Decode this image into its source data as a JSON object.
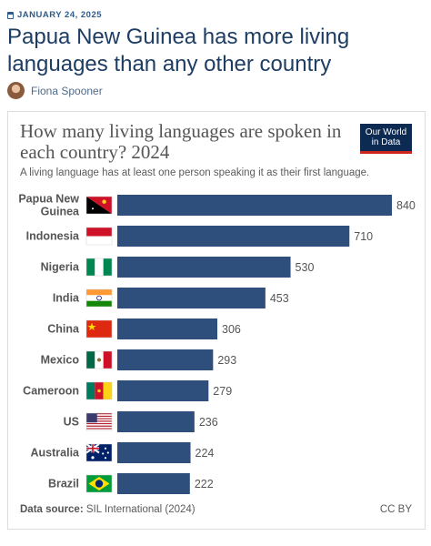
{
  "article": {
    "date": "JANUARY 24, 2025",
    "title": "Papua New Guinea has more living languages than any other country",
    "author": "Fiona Spooner"
  },
  "logo": {
    "line1": "Our World",
    "line2": "in Data"
  },
  "source": {
    "label": "Data source:",
    "text": "SIL International (2024)"
  },
  "license": "CC BY",
  "chart_data": {
    "type": "bar",
    "orientation": "horizontal",
    "title": "How many living languages are spoken in each country? 2024",
    "subtitle": "A living language has at least one person speaking it as their first language.",
    "categories": [
      "Papua New Guinea",
      "Indonesia",
      "Nigeria",
      "India",
      "China",
      "Mexico",
      "Cameroon",
      "US",
      "Australia",
      "Brazil"
    ],
    "values": [
      840,
      710,
      530,
      453,
      306,
      293,
      279,
      236,
      224,
      222
    ],
    "flags": [
      "papua-new-guinea-flag",
      "indonesia-flag",
      "nigeria-flag",
      "india-flag",
      "china-flag",
      "mexico-flag",
      "cameroon-flag",
      "us-flag",
      "australia-flag",
      "brazil-flag"
    ],
    "bar_color": "#2e4f7c",
    "grid": false,
    "xlim": [
      0,
      840
    ]
  }
}
